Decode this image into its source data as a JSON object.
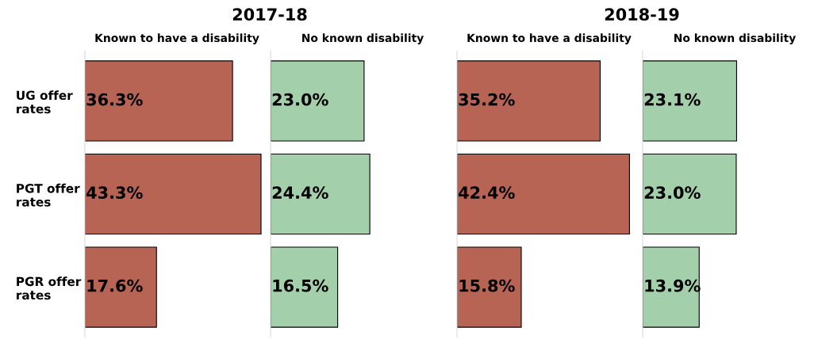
{
  "chart_data": [
    {
      "type": "bar",
      "orientation": "horizontal",
      "title": "2017-18",
      "subtitle": "Known to have a disability",
      "categories": [
        "UG offer rates",
        "PGT offer rates",
        "PGR offer rates"
      ],
      "tick_labels": "y",
      "series": [
        {
          "color": "#b86455",
          "values": [
            36.3,
            43.3,
            17.6
          ],
          "value_labels": [
            "36.3%",
            "43.3%",
            "17.6%"
          ]
        }
      ]
    },
    {
      "type": "bar",
      "orientation": "horizontal",
      "subtitle": "No known disability",
      "categories": [
        null,
        null,
        null
      ],
      "series": [
        {
          "color": "#a3cfab",
          "values": [
            23.0,
            24.4,
            16.5
          ],
          "value_labels": [
            "23.0%",
            "24.4%",
            "16.5%"
          ]
        }
      ]
    },
    {
      "type": "bar",
      "orientation": "horizontal",
      "title": "2018-19",
      "subtitle": "Known to have a disability",
      "categories": [
        null,
        null,
        null
      ],
      "series": [
        {
          "color": "#b86455",
          "values": [
            35.2,
            42.4,
            15.8
          ],
          "value_labels": [
            "35.2%",
            "42.4%",
            "15.8%"
          ]
        }
      ]
    },
    {
      "type": "bar",
      "orientation": "horizontal",
      "subtitle": "No known disability",
      "categories": [
        null,
        null,
        null
      ],
      "series": [
        {
          "color": "#a3cfab",
          "values": [
            23.1,
            23.0,
            13.9
          ],
          "value_labels": [
            "23.1%",
            "23.0%",
            "13.9%"
          ]
        }
      ]
    }
  ]
}
